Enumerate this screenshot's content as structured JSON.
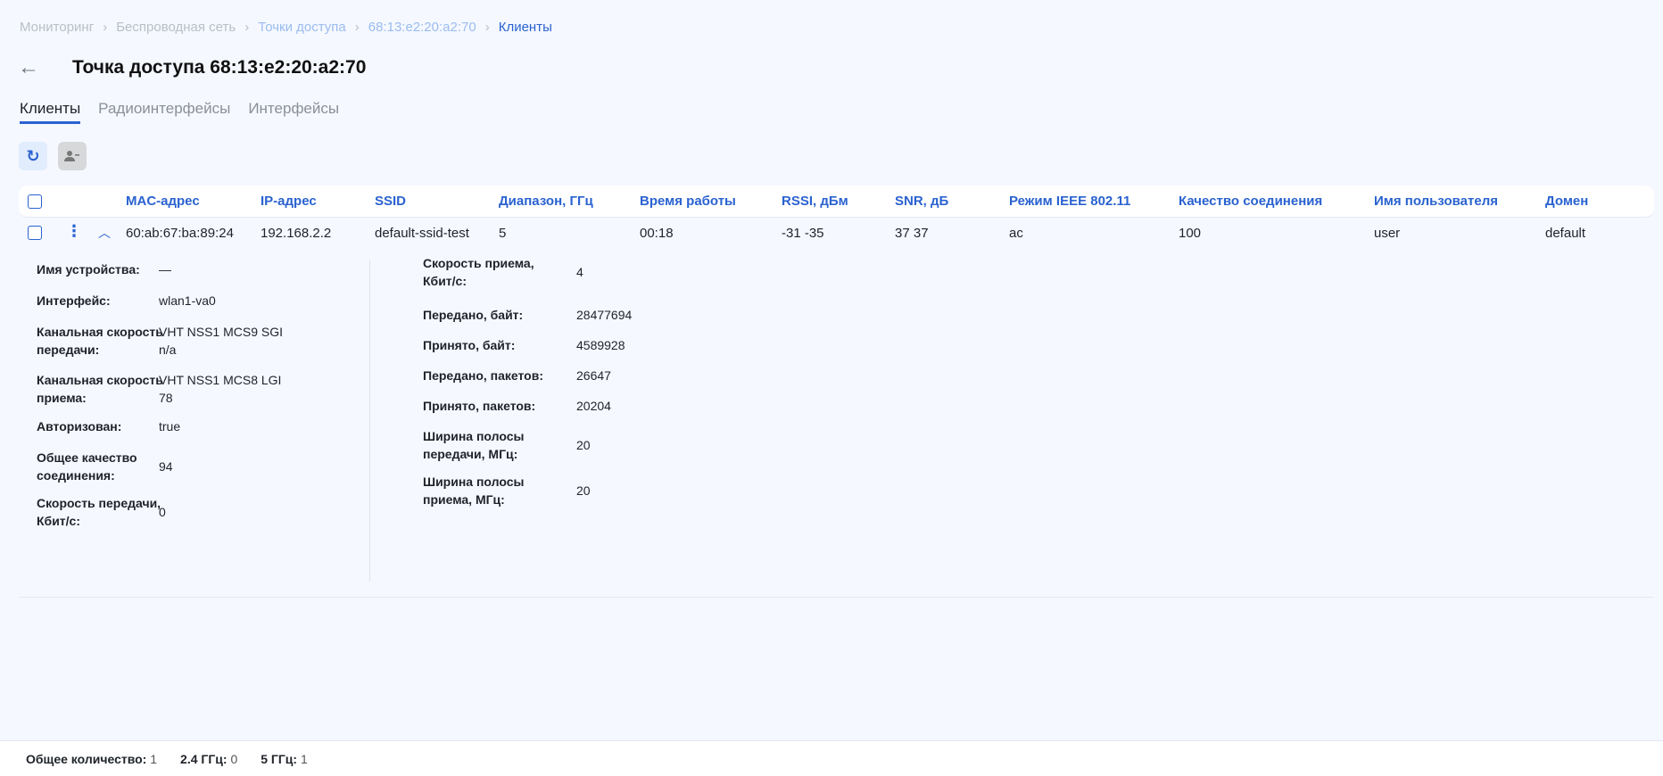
{
  "breadcrumb": [
    {
      "label": "Мониторинг",
      "state": "disabled"
    },
    {
      "label": "Беспроводная сеть",
      "state": "disabled"
    },
    {
      "label": "Точки доступа",
      "state": "link"
    },
    {
      "label": "68:13:e2:20:a2:70",
      "state": "link"
    },
    {
      "label": "Клиенты",
      "state": "current"
    }
  ],
  "header": {
    "title": "Точка доступа 68:13:e2:20:a2:70"
  },
  "tabs": [
    {
      "label": "Клиенты",
      "active": true
    },
    {
      "label": "Радиоинтерфейсы"
    },
    {
      "label": "Интерфейсы"
    }
  ],
  "toolbar": {
    "refresh_icon": "refresh-icon",
    "remove_icon": "user-remove-icon"
  },
  "table": {
    "columns": [
      "MAC-адрес",
      "IP-адрес",
      "SSID",
      "Диапазон, ГГц",
      "Время работы",
      "RSSI, дБм",
      "SNR, дБ",
      "Режим IEEE 802.11",
      "Качество соединения",
      "Имя пользователя",
      "Домен"
    ],
    "rows": [
      [
        "60:ab:67:ba:89:24",
        "192.168.2.2",
        "default-ssid-test",
        "5",
        "00:18",
        "-31 -35",
        "37 37",
        "ac",
        "100",
        "user",
        "default"
      ]
    ]
  },
  "details": {
    "left": [
      {
        "label": "Имя устройства:",
        "value": "—"
      },
      {
        "label": "Интерфейс:",
        "value": "wlan1-va0"
      },
      {
        "label": "Канальная скорость передачи:",
        "value": "VHT NSS1 MCS9 SGI n/a"
      },
      {
        "label": "Канальная скорость приема:",
        "value": "VHT NSS1 MCS8 LGI 78"
      },
      {
        "label": "Авторизован:",
        "value": "true"
      },
      {
        "label": "Общее качество соединения:",
        "value": "94"
      },
      {
        "label": "Скорость передачи, Кбит/с:",
        "value": "0"
      }
    ],
    "right": [
      {
        "label": "Скорость приема, Кбит/с:",
        "value": "4"
      },
      {
        "label": "Передано, байт:",
        "value": "28477694"
      },
      {
        "label": "Принято, байт:",
        "value": "4589928"
      },
      {
        "label": "Передано, пакетов:",
        "value": "26647"
      },
      {
        "label": "Принято, пакетов:",
        "value": "20204"
      },
      {
        "label": "Ширина полосы передачи, МГц:",
        "value": "20"
      },
      {
        "label": "Ширина полосы приема, МГц:",
        "value": "20"
      }
    ]
  },
  "footer": {
    "total_label": "Общее количество:",
    "total": "1",
    "g24_label": "2.4 ГГц:",
    "g24": "0",
    "g5_label": "5 ГГц:",
    "g5": "1"
  },
  "colors": {
    "accent": "#2a62d0",
    "background": "#f5f8fe"
  }
}
